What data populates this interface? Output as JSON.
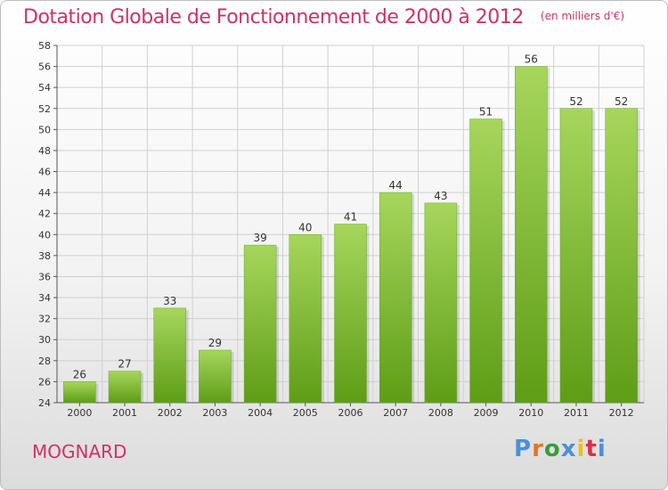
{
  "title": "Dotation Globale de Fonctionnement de 2000 à 2012",
  "unit_label": "(en milliers d'€)",
  "commune": "MOGNARD",
  "logo": {
    "text": "Proxiti",
    "letter_colors": [
      "#4a90d9",
      "#e8731e",
      "#3a9d3a",
      "#4a90d9",
      "#e8c21e",
      "#d9304a",
      "#4a90d9"
    ]
  },
  "colors": {
    "title": "#cc3366",
    "bar_light": "#a6d65c",
    "bar_dark": "#5e9d16",
    "grid": "#d0d0d0"
  },
  "chart_data": {
    "type": "bar",
    "title": "Dotation Globale de Fonctionnement de 2000 à 2012",
    "subtitle": "(en milliers d'€)",
    "categories": [
      "2000",
      "2001",
      "2002",
      "2003",
      "2004",
      "2005",
      "2006",
      "2007",
      "2008",
      "2009",
      "2010",
      "2011",
      "2012"
    ],
    "values": [
      26,
      27,
      33,
      29,
      39,
      40,
      41,
      44,
      43,
      51,
      56,
      52,
      52
    ],
    "ylim": [
      24,
      58
    ],
    "yticks": [
      24,
      26,
      28,
      30,
      32,
      34,
      36,
      38,
      40,
      42,
      44,
      46,
      48,
      50,
      52,
      54,
      56,
      58
    ],
    "grid": true,
    "data_labels": true
  }
}
